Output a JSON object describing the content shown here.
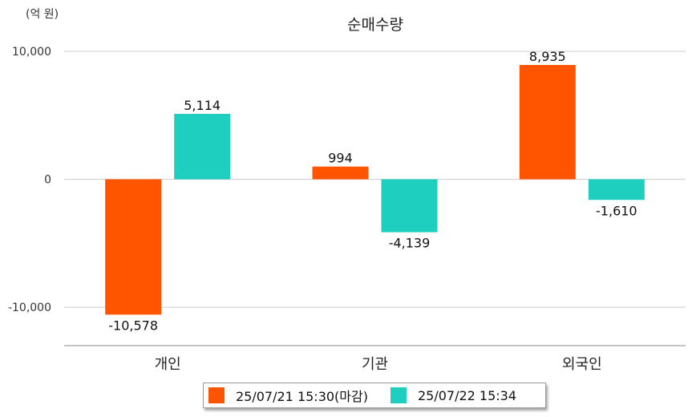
{
  "chart_data": {
    "type": "bar",
    "title": "순매수량",
    "unit_label": "(억 원)",
    "categories": [
      "개인",
      "기관",
      "외국인"
    ],
    "series": [
      {
        "name": "25/07/21 15:30(마감)",
        "color": "#ff5500",
        "values": [
          -10578,
          994,
          8935
        ],
        "labels": [
          "-10,578",
          "994",
          "8,935"
        ]
      },
      {
        "name": "25/07/22 15:34",
        "color": "#1ecfbf",
        "values": [
          5114,
          -4139,
          -1610
        ],
        "labels": [
          "5,114",
          "-4,139",
          "-1,610"
        ]
      }
    ],
    "yticks": [
      -10000,
      0,
      10000
    ],
    "ytick_labels": [
      "-10,000",
      "0",
      "10,000"
    ],
    "ylim": [
      -13000,
      10000
    ],
    "grid": true,
    "legend": "bottom"
  }
}
